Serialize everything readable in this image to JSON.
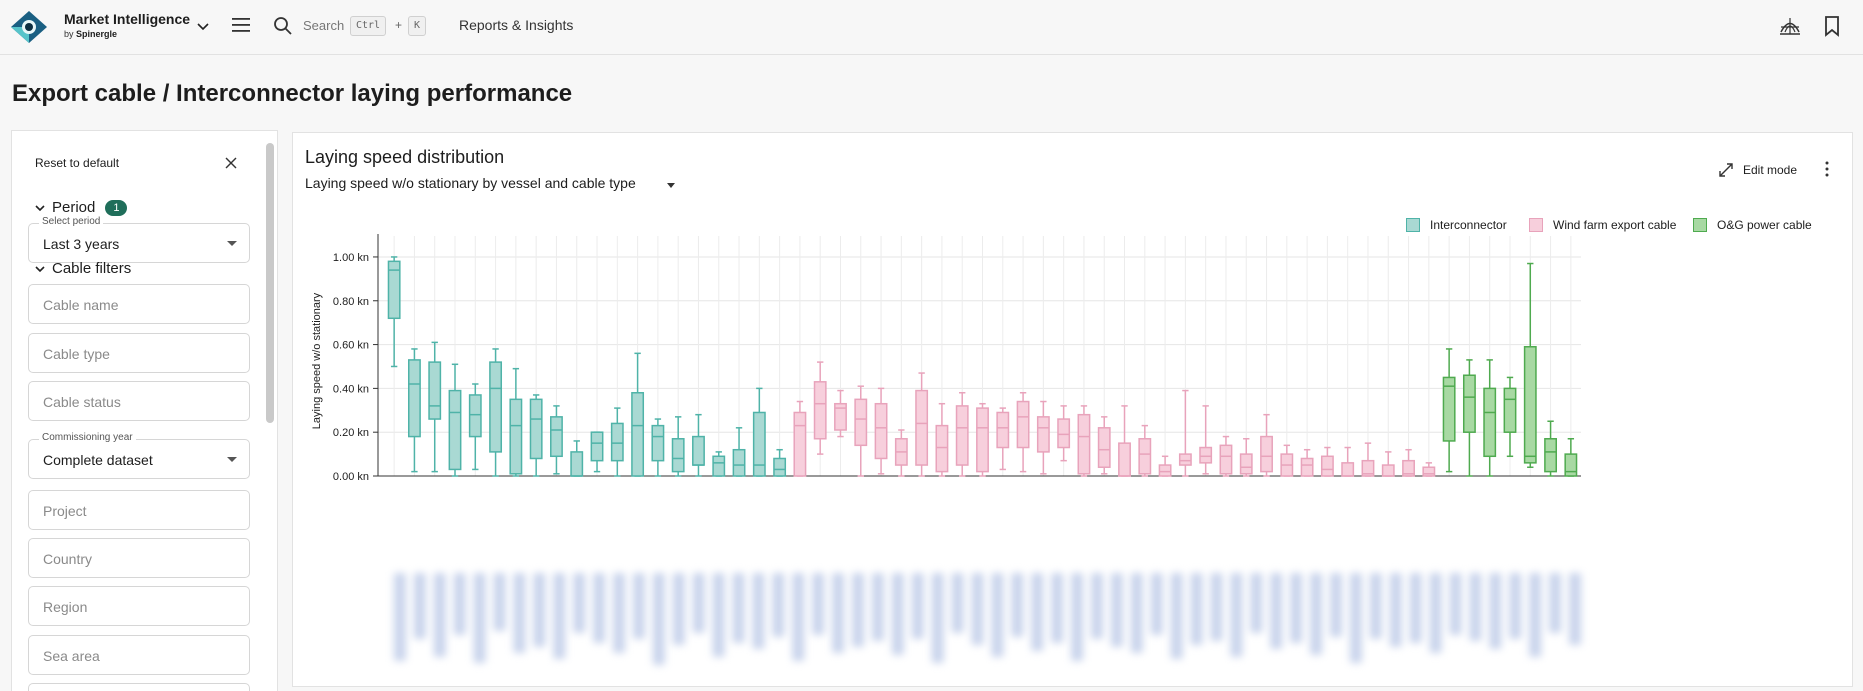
{
  "app": {
    "name": "Market Intelligence",
    "by_prefix": "by",
    "by_brand": "Spinergle",
    "search_label": "Search",
    "shortcut_ctrl": "Ctrl",
    "shortcut_plus": "+",
    "shortcut_key": "K",
    "nav_item": "Reports & Insights",
    "logo_colors": {
      "dark": "#1a5f82",
      "light": "#57c4ca",
      "eye": "#0c2e40"
    }
  },
  "page": {
    "title": "Export cable / Interconnector laying performance"
  },
  "sidebar": {
    "reset_label": "Reset to default",
    "period": {
      "heading": "Period",
      "badge": "1",
      "select_label": "Select period",
      "select_value": "Last 3 years"
    },
    "cable_filters": {
      "heading": "Cable filters",
      "cable_name": "Cable name",
      "cable_type": "Cable type",
      "cable_status": "Cable status",
      "commissioning_label": "Commissioning year",
      "commissioning_value": "Complete dataset",
      "project": "Project",
      "country": "Country",
      "region": "Region",
      "sea_area": "Sea area"
    }
  },
  "panel": {
    "title": "Laying speed distribution",
    "select_value": "Laying speed w/o stationary by vessel and cable type",
    "edit_mode": "Edit mode"
  },
  "chart_data": {
    "type": "boxplot",
    "title": "",
    "ylabel": "Laying speed w/o stationary",
    "ylim": [
      0,
      1.05
    ],
    "y_ticks": [
      "0.00 kn",
      "0.20 kn",
      "0.40 kn",
      "0.60 kn",
      "0.80 kn",
      "1.00 kn"
    ],
    "x_tick_labels_note": "blurred/unreadable",
    "legend": {
      "placement": "top-right",
      "items": [
        {
          "name": "Interconnector",
          "fill": "#a9d9d3",
          "stroke": "#4fb3a8"
        },
        {
          "name": "Wind farm export cable",
          "fill": "#f7cfdc",
          "stroke": "#e8a3bb"
        },
        {
          "name": "O&G power cable",
          "fill": "#a8d9a3",
          "stroke": "#4faa4f"
        }
      ]
    },
    "series": [
      {
        "name": "Interconnector",
        "boxes": [
          [
            0.5,
            0.72,
            0.94,
            0.98,
            1.0
          ],
          [
            0.02,
            0.18,
            0.42,
            0.53,
            0.58
          ],
          [
            0.02,
            0.26,
            0.32,
            0.52,
            0.61
          ],
          [
            0.0,
            0.03,
            0.29,
            0.39,
            0.51
          ],
          [
            0.03,
            0.18,
            0.28,
            0.37,
            0.42
          ],
          [
            0.0,
            0.11,
            0.4,
            0.52,
            0.58
          ],
          [
            0.0,
            0.01,
            0.23,
            0.35,
            0.49
          ],
          [
            0.0,
            0.08,
            0.26,
            0.35,
            0.37
          ],
          [
            0.01,
            0.09,
            0.21,
            0.27,
            0.32
          ],
          [
            0.0,
            0.0,
            0.0,
            0.11,
            0.16
          ],
          [
            0.02,
            0.07,
            0.15,
            0.2,
            0.2
          ],
          [
            0.0,
            0.07,
            0.15,
            0.24,
            0.31
          ],
          [
            0.0,
            0.0,
            0.23,
            0.38,
            0.56
          ],
          [
            0.0,
            0.07,
            0.18,
            0.23,
            0.26
          ],
          [
            0.0,
            0.02,
            0.08,
            0.17,
            0.27
          ],
          [
            0.0,
            0.05,
            0.05,
            0.18,
            0.28
          ],
          [
            0.0,
            0.0,
            0.06,
            0.09,
            0.11
          ],
          [
            0.0,
            0.0,
            0.05,
            0.12,
            0.22
          ],
          [
            0.0,
            0.0,
            0.05,
            0.29,
            0.4
          ],
          [
            0.0,
            0.0,
            0.03,
            0.08,
            0.12
          ]
        ]
      },
      {
        "name": "Wind farm export cable",
        "boxes": [
          [
            0.0,
            0.0,
            0.23,
            0.29,
            0.34
          ],
          [
            0.1,
            0.17,
            0.33,
            0.43,
            0.52
          ],
          [
            0.18,
            0.21,
            0.31,
            0.33,
            0.39
          ],
          [
            0.0,
            0.14,
            0.26,
            0.35,
            0.41
          ],
          [
            0.01,
            0.08,
            0.22,
            0.33,
            0.4
          ],
          [
            0.0,
            0.05,
            0.11,
            0.17,
            0.21
          ],
          [
            0.0,
            0.05,
            0.24,
            0.39,
            0.47
          ],
          [
            0.0,
            0.02,
            0.13,
            0.23,
            0.33
          ],
          [
            0.0,
            0.05,
            0.22,
            0.32,
            0.38
          ],
          [
            0.0,
            0.02,
            0.22,
            0.31,
            0.33
          ],
          [
            0.03,
            0.13,
            0.22,
            0.29,
            0.31
          ],
          [
            0.02,
            0.13,
            0.27,
            0.34,
            0.38
          ],
          [
            0.01,
            0.11,
            0.22,
            0.27,
            0.34
          ],
          [
            0.07,
            0.13,
            0.19,
            0.26,
            0.32
          ],
          [
            0.0,
            0.01,
            0.18,
            0.28,
            0.32
          ],
          [
            0.01,
            0.04,
            0.12,
            0.22,
            0.27
          ],
          [
            0.0,
            0.0,
            0.0,
            0.15,
            0.32
          ],
          [
            0.0,
            0.01,
            0.1,
            0.17,
            0.23
          ],
          [
            0.0,
            0.0,
            0.02,
            0.05,
            0.09
          ],
          [
            0.0,
            0.05,
            0.07,
            0.1,
            0.39
          ],
          [
            0.01,
            0.06,
            0.09,
            0.13,
            0.32
          ],
          [
            0.0,
            0.01,
            0.09,
            0.14,
            0.18
          ],
          [
            0.0,
            0.01,
            0.04,
            0.1,
            0.17
          ],
          [
            0.0,
            0.02,
            0.09,
            0.18,
            0.28
          ],
          [
            0.0,
            0.0,
            0.05,
            0.1,
            0.14
          ],
          [
            0.0,
            0.0,
            0.05,
            0.08,
            0.12
          ],
          [
            0.0,
            0.0,
            0.03,
            0.09,
            0.13
          ],
          [
            0.0,
            0.0,
            0.0,
            0.06,
            0.13
          ],
          [
            0.0,
            0.0,
            0.01,
            0.07,
            0.15
          ],
          [
            0.0,
            0.0,
            0.0,
            0.05,
            0.11
          ],
          [
            0.0,
            0.0,
            0.01,
            0.07,
            0.12
          ],
          [
            0.0,
            0.0,
            0.01,
            0.04,
            0.06
          ]
        ]
      },
      {
        "name": "O&G power cable",
        "boxes": [
          [
            0.02,
            0.16,
            0.41,
            0.45,
            0.58
          ],
          [
            0.0,
            0.2,
            0.36,
            0.46,
            0.53
          ],
          [
            0.0,
            0.09,
            0.29,
            0.4,
            0.53
          ],
          [
            0.09,
            0.2,
            0.35,
            0.4,
            0.45
          ],
          [
            0.04,
            0.06,
            0.09,
            0.59,
            0.97
          ],
          [
            0.0,
            0.02,
            0.11,
            0.17,
            0.25
          ],
          [
            0.0,
            0.0,
            0.02,
            0.1,
            0.17
          ]
        ]
      }
    ]
  }
}
